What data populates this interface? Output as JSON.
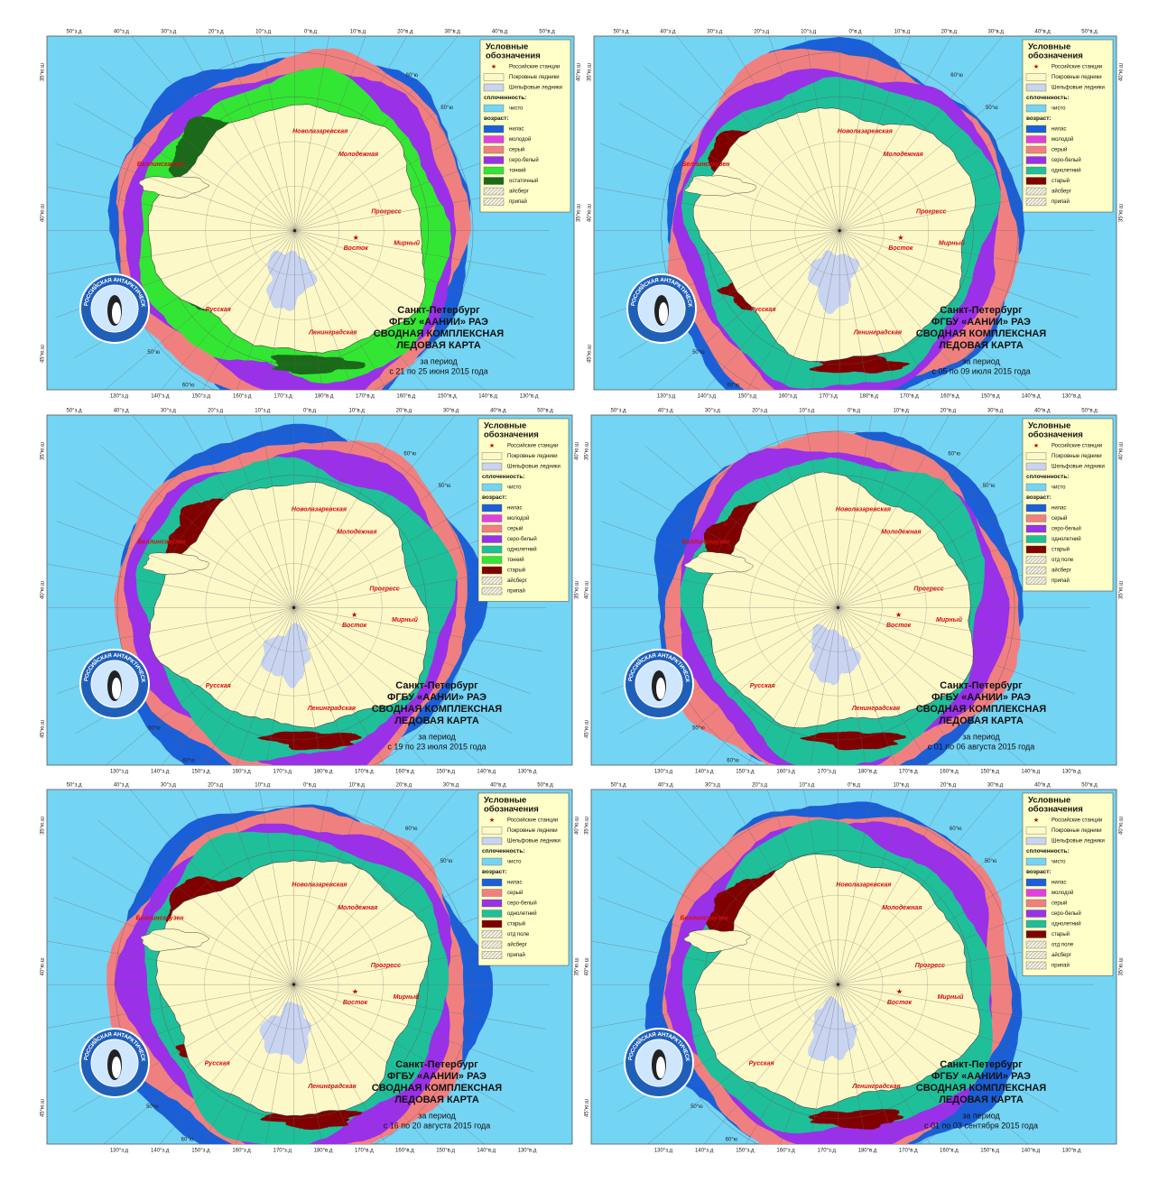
{
  "graticule": {
    "top": [
      "50°з.д",
      "40°з.д",
      "30°з.д",
      "20°з.д",
      "10°з.д",
      "0°в.д",
      "10°в.д",
      "20°в.д",
      "30°в.д",
      "40°в.д",
      "50°в.д"
    ],
    "bottom": [
      "130°з.д",
      "140°з.д",
      "150°з.д",
      "160°з.д",
      "170°з.д",
      "180°в.д",
      "170°в.д",
      "160°в.д",
      "150°в.д",
      "140°в.д",
      "130°в.д"
    ],
    "lat": [
      "35°ю.ш",
      "40°ю.ш",
      "45°ю.ш",
      "40°ю.ш",
      "35°ю.ш"
    ],
    "inner": [
      "50°ю",
      "60°ю",
      "60°ю",
      "50°ю"
    ]
  },
  "logo_text": "РОССИЙСКАЯ АНТАРКТИЧЕСКАЯ ЭКСПЕДИЦИЯ",
  "stations": [
    "Новолазаревская",
    "Молодежная",
    "Прогресс",
    "Мирный",
    "Восток",
    "Беллинсгаузен",
    "Русская",
    "Ленинградская"
  ],
  "map_title": [
    "Санкт-Петербург",
    "ФГБУ «ААНИИ» РАЭ",
    "СВОДНАЯ КОМПЛЕКСНАЯ",
    "ЛЕДОВАЯ КАРТА",
    "за период"
  ],
  "legend_title": [
    "Условные",
    "обозначения"
  ],
  "panels": [
    {
      "period": "с 21 по 25 июня 2015 года",
      "legend": [
        {
          "label": "Российские станции",
          "symbol": "star"
        },
        {
          "label": "Покровные ледники",
          "color": "#fdf8c8"
        },
        {
          "label": "Шельфовые ледники",
          "color": "#c8d4f0"
        },
        {
          "label": "сплоченность:",
          "header": true
        },
        {
          "label": "чисто",
          "color": "#74d4f4"
        },
        {
          "label": "возраст:",
          "header": true
        },
        {
          "label": "нилас",
          "color": "#1a5fd8"
        },
        {
          "label": "молодой",
          "color": "#e040e0"
        },
        {
          "label": "серый",
          "color": "#f08080"
        },
        {
          "label": "серо-белый",
          "color": "#9a30e8"
        },
        {
          "label": "тонкий",
          "color": "#33e633"
        },
        {
          "label": "остаточный",
          "color": "#1a6a1a"
        },
        {
          "label": "айсберг",
          "symbol": "hatch"
        },
        {
          "label": "припай",
          "symbol": "hatch"
        }
      ]
    },
    {
      "period": "с 05 по 09 июля 2015 года",
      "legend": [
        {
          "label": "Российские станции",
          "symbol": "star"
        },
        {
          "label": "Покровные ледники",
          "color": "#fdf8c8"
        },
        {
          "label": "Шельфовые ледники",
          "color": "#c8d4f0"
        },
        {
          "label": "сплоченность:",
          "header": true
        },
        {
          "label": "чисто",
          "color": "#74d4f4"
        },
        {
          "label": "возраст:",
          "header": true
        },
        {
          "label": "нилас",
          "color": "#1a5fd8"
        },
        {
          "label": "молодой",
          "color": "#e040e0"
        },
        {
          "label": "серый",
          "color": "#f08080"
        },
        {
          "label": "серо-белый",
          "color": "#9a30e8"
        },
        {
          "label": "однолетний",
          "color": "#1fbf9a"
        },
        {
          "label": "старый",
          "color": "#800000"
        },
        {
          "label": "айсберг",
          "symbol": "hatch"
        },
        {
          "label": "припай",
          "symbol": "hatch"
        }
      ]
    },
    {
      "period": "с 19 по 23 июля 2015 года",
      "legend": [
        {
          "label": "Российские станции",
          "symbol": "star"
        },
        {
          "label": "Покровные ледники",
          "color": "#fdf8c8"
        },
        {
          "label": "Шельфовые ледники",
          "color": "#c8d4f0"
        },
        {
          "label": "сплоченность:",
          "header": true
        },
        {
          "label": "чисто",
          "color": "#74d4f4"
        },
        {
          "label": "возраст:",
          "header": true
        },
        {
          "label": "нилас",
          "color": "#1a5fd8"
        },
        {
          "label": "молодой",
          "color": "#e040e0"
        },
        {
          "label": "серый",
          "color": "#f08080"
        },
        {
          "label": "серо-белый",
          "color": "#9a30e8"
        },
        {
          "label": "однолетний",
          "color": "#1fbf9a"
        },
        {
          "label": "тонкий",
          "color": "#33e633"
        },
        {
          "label": "старый",
          "color": "#800000"
        },
        {
          "label": "айсберг",
          "symbol": "hatch"
        },
        {
          "label": "припай",
          "symbol": "hatch"
        }
      ]
    },
    {
      "period": "с 01 по 06 августа 2015 года",
      "legend": [
        {
          "label": "Российские станции",
          "symbol": "star"
        },
        {
          "label": "Покровные ледники",
          "color": "#fdf8c8"
        },
        {
          "label": "Шельфовые ледники",
          "color": "#c8d4f0"
        },
        {
          "label": "сплоченность:",
          "header": true
        },
        {
          "label": "чисто",
          "color": "#74d4f4"
        },
        {
          "label": "возраст:",
          "header": true
        },
        {
          "label": "нилас",
          "color": "#1a5fd8"
        },
        {
          "label": "серый",
          "color": "#f08080"
        },
        {
          "label": "серо-белый",
          "color": "#9a30e8"
        },
        {
          "label": "однолетний",
          "color": "#1fbf9a"
        },
        {
          "label": "старый",
          "color": "#800000"
        },
        {
          "label": "отд поле",
          "symbol": "hatch"
        },
        {
          "label": "айсберг",
          "symbol": "hatch"
        },
        {
          "label": "припай",
          "symbol": "hatch"
        }
      ]
    },
    {
      "period": "с 16 по 20 августа 2015 года",
      "legend": [
        {
          "label": "Российские станции",
          "symbol": "star"
        },
        {
          "label": "Покровные ледники",
          "color": "#fdf8c8"
        },
        {
          "label": "Шельфовые ледники",
          "color": "#c8d4f0"
        },
        {
          "label": "сплоченность:",
          "header": true
        },
        {
          "label": "чисто",
          "color": "#74d4f4"
        },
        {
          "label": "возраст:",
          "header": true
        },
        {
          "label": "нилас",
          "color": "#1a5fd8"
        },
        {
          "label": "серый",
          "color": "#f08080"
        },
        {
          "label": "серо-белый",
          "color": "#9a30e8"
        },
        {
          "label": "однолетний",
          "color": "#1fbf9a"
        },
        {
          "label": "старый",
          "color": "#800000"
        },
        {
          "label": "отд поле",
          "symbol": "hatch"
        },
        {
          "label": "айсберг",
          "symbol": "hatch"
        },
        {
          "label": "припай",
          "symbol": "hatch"
        }
      ]
    },
    {
      "period": "с 01 по 03 сентября 2015 года",
      "legend": [
        {
          "label": "Российские станции",
          "symbol": "star"
        },
        {
          "label": "Покровные ледники",
          "color": "#fdf8c8"
        },
        {
          "label": "Шельфовые ледники",
          "color": "#c8d4f0"
        },
        {
          "label": "сплоченность:",
          "header": true
        },
        {
          "label": "чисто",
          "color": "#74d4f4"
        },
        {
          "label": "возраст:",
          "header": true
        },
        {
          "label": "нилас",
          "color": "#1a5fd8"
        },
        {
          "label": "молодой",
          "color": "#e040e0"
        },
        {
          "label": "серый",
          "color": "#f08080"
        },
        {
          "label": "серо-белый",
          "color": "#9a30e8"
        },
        {
          "label": "однолетний",
          "color": "#1fbf9a"
        },
        {
          "label": "старый",
          "color": "#800000"
        },
        {
          "label": "отд поле",
          "symbol": "hatch"
        },
        {
          "label": "айсберг",
          "symbol": "hatch"
        },
        {
          "label": "припай",
          "symbol": "hatch"
        }
      ]
    }
  ]
}
